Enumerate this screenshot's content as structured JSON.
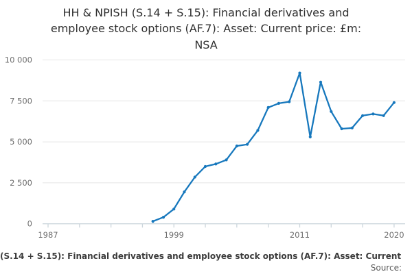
{
  "title": {
    "lines": [
      "HH & NPISH (S.14 + S.15): Financial derivatives and",
      "employee stock options (AF.7): Asset: Current price: £m:",
      "NSA"
    ]
  },
  "footer": {
    "caption": "(S.14 + S.15): Financial derivatives and employee stock options (AF.7): Asset: Current",
    "source_label": "Source:"
  },
  "chart_data": {
    "type": "line",
    "title": "HH & NPISH (S.14 + S.15): Financial derivatives and employee stock options (AF.7): Asset: Current price: £m: NSA",
    "ylabel": "",
    "xlabel": "",
    "x": [
      1997,
      1998,
      1999,
      2000,
      2001,
      2002,
      2003,
      2004,
      2005,
      2006,
      2007,
      2008,
      2009,
      2010,
      2011,
      2012,
      2013,
      2014,
      2015,
      2016,
      2017,
      2018,
      2019,
      2020
    ],
    "values": [
      150,
      400,
      900,
      1950,
      2850,
      3500,
      3650,
      3900,
      4750,
      4850,
      5700,
      7100,
      7350,
      7450,
      9200,
      5300,
      8650,
      6850,
      5800,
      5850,
      6600,
      6700,
      6600,
      7400
    ],
    "xlim": [
      1986.5,
      2021
    ],
    "ylim": [
      0,
      10000
    ],
    "x_tick_years": [
      1987,
      1990,
      1993,
      1996,
      1999,
      2002,
      2005,
      2008,
      2011,
      2014,
      2017,
      2020
    ],
    "x_tick_labels_shown": [
      {
        "year": 1987,
        "label": "1987"
      },
      {
        "year": 1999,
        "label": "1999"
      },
      {
        "year": 2011,
        "label": "2011"
      },
      {
        "year": 2020,
        "label": "2020"
      }
    ],
    "y_ticks": [
      0,
      2500,
      5000,
      7500,
      10000
    ],
    "y_tick_labels": [
      "0",
      "2 500",
      "5 000",
      "7 500",
      "10 000"
    ],
    "grid": "horizontal",
    "legend": "none",
    "line_color": "#1778bd",
    "grid_color": "#e5e5e5",
    "axis_color": "#ccd6dc",
    "tick_label_color": "#6e6e6e",
    "marker": "dot"
  }
}
